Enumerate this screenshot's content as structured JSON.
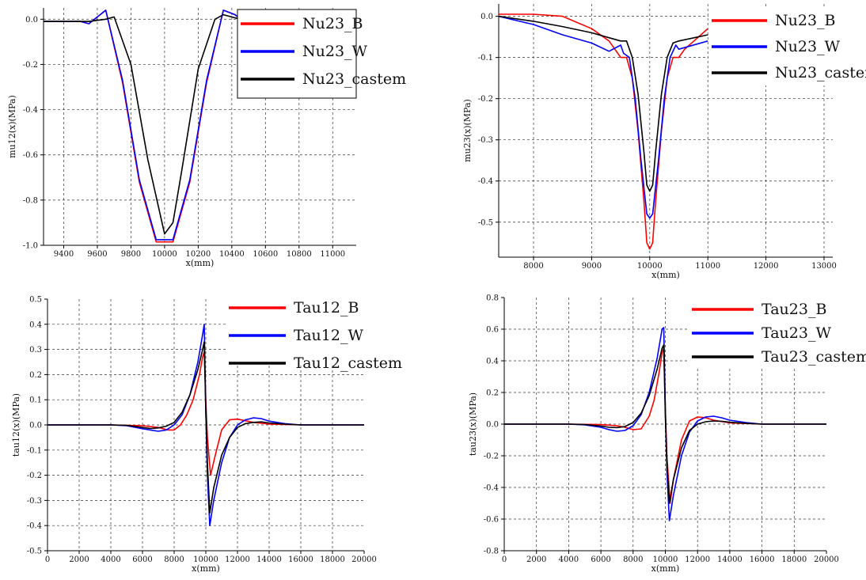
{
  "chart_data": [
    {
      "type": "line",
      "xlabel": "x(mm)",
      "ylabel": "mu12(x)(MPa)",
      "xlim": [
        9280,
        11140
      ],
      "ylim": [
        -1.0,
        0.05
      ],
      "xticks": [
        9400,
        9600,
        9800,
        10000,
        10200,
        10400,
        10600,
        10800,
        11000
      ],
      "yticks": [
        0.0,
        -0.2,
        -0.4,
        -0.6,
        -0.8,
        -1.0
      ],
      "ytick_labels": [
        "0.0",
        "-0.2",
        "-0.4",
        "-0.6",
        "-0.8",
        "-1.0"
      ],
      "grid": true,
      "legend_position": "top-right",
      "series": [
        {
          "name": "Nu23_B",
          "color": "#ff0000",
          "x": [
            9280,
            9500,
            9550,
            9650,
            9750,
            9850,
            9950,
            10050,
            10150,
            10250,
            10350,
            10420,
            10450
          ],
          "y": [
            -0.01,
            -0.01,
            -0.02,
            0.04,
            -0.28,
            -0.72,
            -0.985,
            -0.985,
            -0.72,
            -0.28,
            0.04,
            0.02,
            0.0
          ]
        },
        {
          "name": "Nu23_W",
          "color": "#0000ff",
          "x": [
            9280,
            9500,
            9550,
            9650,
            9750,
            9850,
            9950,
            10050,
            10150,
            10250,
            10350,
            10420,
            10450
          ],
          "y": [
            -0.01,
            -0.01,
            -0.02,
            0.04,
            -0.27,
            -0.71,
            -0.975,
            -0.975,
            -0.71,
            -0.27,
            0.04,
            0.02,
            0.0
          ]
        },
        {
          "name": "Nu23_castem",
          "color": "#000000",
          "x": [
            9280,
            9550,
            9650,
            9700,
            9800,
            9900,
            10000,
            10050,
            10100,
            10200,
            10300,
            10350,
            10400,
            10450
          ],
          "y": [
            -0.01,
            -0.01,
            0.0,
            0.01,
            -0.2,
            -0.62,
            -0.95,
            -0.9,
            -0.68,
            -0.22,
            0.0,
            0.02,
            0.01,
            0.0
          ]
        }
      ]
    },
    {
      "type": "line",
      "xlabel": "x(mm)",
      "ylabel": "mu23(x)(MPa)",
      "xlim": [
        7400,
        13150
      ],
      "ylim": [
        -0.585,
        0.03
      ],
      "xticks": [
        8000,
        9000,
        10000,
        11000,
        12000,
        13000
      ],
      "yticks": [
        0.0,
        -0.1,
        -0.2,
        -0.3,
        -0.4,
        -0.5
      ],
      "ytick_labels": [
        "0.0",
        "-0.1",
        "-0.2",
        "-0.3",
        "-0.4",
        "-0.5"
      ],
      "grid": true,
      "legend_position": "top-right",
      "series": [
        {
          "name": "Nu23_B",
          "color": "#ff0000",
          "x": [
            7400,
            8000,
            8500,
            9000,
            9300,
            9500,
            9600,
            9700,
            9800,
            9900,
            9950,
            10000,
            10050,
            10100,
            10200,
            10300,
            10400,
            10500,
            10600,
            11000
          ],
          "y": [
            0.005,
            0.005,
            0.0,
            -0.03,
            -0.06,
            -0.1,
            -0.1,
            -0.15,
            -0.28,
            -0.45,
            -0.55,
            -0.565,
            -0.55,
            -0.45,
            -0.28,
            -0.15,
            -0.1,
            -0.1,
            -0.08,
            -0.03
          ]
        },
        {
          "name": "Nu23_W",
          "color": "#0000ff",
          "x": [
            7400,
            8000,
            8500,
            9000,
            9300,
            9500,
            9550,
            9650,
            9750,
            9850,
            9950,
            10000,
            10050,
            10150,
            10250,
            10350,
            10450,
            10500,
            11000
          ],
          "y": [
            0.0,
            -0.02,
            -0.045,
            -0.065,
            -0.085,
            -0.07,
            -0.09,
            -0.1,
            -0.2,
            -0.35,
            -0.48,
            -0.49,
            -0.48,
            -0.35,
            -0.2,
            -0.1,
            -0.07,
            -0.08,
            -0.06
          ]
        },
        {
          "name": "Nu23_castem",
          "color": "#000000",
          "x": [
            7400,
            8000,
            8500,
            9000,
            9300,
            9500,
            9600,
            9700,
            9800,
            9900,
            9950,
            10000,
            10050,
            10100,
            10200,
            10300,
            10400,
            10500,
            11000
          ],
          "y": [
            0.0,
            -0.012,
            -0.025,
            -0.04,
            -0.052,
            -0.06,
            -0.06,
            -0.1,
            -0.19,
            -0.33,
            -0.41,
            -0.425,
            -0.41,
            -0.33,
            -0.19,
            -0.1,
            -0.065,
            -0.06,
            -0.045
          ]
        }
      ]
    },
    {
      "type": "line",
      "xlabel": "x(mm)",
      "ylabel": "tau12(x)(MPa)",
      "xlim": [
        0,
        20000
      ],
      "ylim": [
        -0.5,
        0.5
      ],
      "xticks": [
        0,
        2000,
        4000,
        6000,
        8000,
        10000,
        12000,
        14000,
        16000,
        18000,
        20000
      ],
      "yticks": [
        0.5,
        0.4,
        0.3,
        0.2,
        0.1,
        0.0,
        -0.1,
        -0.2,
        -0.3,
        -0.4,
        -0.5
      ],
      "ytick_labels": [
        "0.5",
        "0.4",
        "0.3",
        "0.2",
        "0.1",
        "0.0",
        "-0.1",
        "-0.2",
        "-0.3",
        "-0.4",
        "-0.5"
      ],
      "grid": true,
      "legend_position": "top-right",
      "series": [
        {
          "name": "Tau12_B",
          "color": "#ff0000",
          "x": [
            0,
            4000,
            6000,
            7000,
            7600,
            8000,
            8400,
            8800,
            9200,
            9600,
            9800,
            9900,
            10000,
            10100,
            10300,
            10600,
            11000,
            11500,
            12000,
            13000,
            14000,
            16000,
            20000
          ],
          "y": [
            0,
            0,
            -0.003,
            -0.01,
            -0.02,
            -0.02,
            0.0,
            0.04,
            0.1,
            0.2,
            0.27,
            0.29,
            0.1,
            -0.05,
            -0.2,
            -0.12,
            -0.02,
            0.02,
            0.023,
            0.01,
            0.003,
            0.0,
            0
          ]
        },
        {
          "name": "Tau12_W",
          "color": "#0000ff",
          "x": [
            0,
            4000,
            5000,
            6000,
            6500,
            7000,
            7500,
            8000,
            8500,
            9000,
            9500,
            9800,
            9900,
            10000,
            10100,
            10250,
            10500,
            11000,
            11500,
            12000,
            12500,
            13000,
            13500,
            14000,
            15000,
            16000,
            20000
          ],
          "y": [
            0,
            0,
            -0.003,
            -0.015,
            -0.02,
            -0.025,
            -0.02,
            0.0,
            0.04,
            0.12,
            0.25,
            0.36,
            0.4,
            0.05,
            -0.2,
            -0.4,
            -0.3,
            -0.15,
            -0.05,
            0.0,
            0.02,
            0.028,
            0.025,
            0.015,
            0.005,
            0.0,
            0
          ]
        },
        {
          "name": "Tau12_castem",
          "color": "#000000",
          "x": [
            0,
            4000,
            5000,
            6000,
            6500,
            7000,
            7500,
            8000,
            8500,
            9000,
            9500,
            9800,
            9900,
            10000,
            10100,
            10250,
            10500,
            11000,
            11500,
            12000,
            12500,
            13000,
            13500,
            14000,
            15000,
            16000,
            20000
          ],
          "y": [
            0,
            0,
            -0.002,
            -0.01,
            -0.014,
            -0.012,
            -0.005,
            0.01,
            0.05,
            0.12,
            0.22,
            0.3,
            0.33,
            0.05,
            -0.15,
            -0.35,
            -0.25,
            -0.12,
            -0.05,
            -0.01,
            0.005,
            0.01,
            0.012,
            0.008,
            0.003,
            0.0,
            0
          ]
        }
      ]
    },
    {
      "type": "line",
      "xlabel": "x(mm)",
      "ylabel": "tau23(x)(MPa)",
      "xlim": [
        0,
        20000
      ],
      "ylim": [
        -0.8,
        0.8
      ],
      "xticks": [
        0,
        2000,
        4000,
        6000,
        8000,
        10000,
        12000,
        14000,
        16000,
        18000,
        20000
      ],
      "yticks": [
        0.8,
        0.6,
        0.4,
        0.2,
        0.0,
        -0.2,
        -0.4,
        -0.6,
        -0.8
      ],
      "ytick_labels": [
        "0.8",
        "0.6",
        "0.4",
        "0.2",
        "0.0",
        "-0.2",
        "-0.4",
        "-0.6",
        "-0.8"
      ],
      "grid": true,
      "legend_position": "top-right",
      "series": [
        {
          "name": "Tau23_B",
          "color": "#ff0000",
          "x": [
            0,
            4000,
            6000,
            7000,
            7500,
            8000,
            8500,
            9000,
            9300,
            9600,
            9800,
            9900,
            10000,
            10100,
            10300,
            10500,
            11000,
            11500,
            12000,
            12500,
            13000,
            14000,
            16000,
            20000
          ],
          "y": [
            0,
            0,
            -0.003,
            -0.01,
            -0.02,
            -0.035,
            -0.03,
            0.05,
            0.15,
            0.32,
            0.45,
            0.48,
            0.1,
            -0.2,
            -0.5,
            -0.35,
            -0.1,
            0.02,
            0.045,
            0.04,
            0.025,
            0.008,
            0.0,
            0
          ]
        },
        {
          "name": "Tau23_W",
          "color": "#0000ff",
          "x": [
            0,
            4000,
            5000,
            6000,
            6500,
            7000,
            7500,
            8000,
            8500,
            9000,
            9500,
            9800,
            9900,
            10000,
            10100,
            10250,
            10500,
            11000,
            11500,
            12000,
            12500,
            13000,
            13500,
            14000,
            15000,
            16000,
            20000
          ],
          "y": [
            0,
            0,
            -0.005,
            -0.02,
            -0.035,
            -0.045,
            -0.04,
            -0.01,
            0.06,
            0.2,
            0.42,
            0.6,
            0.61,
            0.1,
            -0.3,
            -0.61,
            -0.45,
            -0.2,
            -0.05,
            0.02,
            0.045,
            0.05,
            0.04,
            0.025,
            0.01,
            0.0,
            0
          ]
        },
        {
          "name": "Tau23_castem",
          "color": "#000000",
          "x": [
            0,
            4000,
            5000,
            6000,
            6500,
            7000,
            7500,
            8000,
            8500,
            9000,
            9500,
            9800,
            9900,
            10000,
            10100,
            10250,
            10500,
            11000,
            11500,
            12000,
            12500,
            13000,
            13500,
            14000,
            15000,
            16000,
            20000
          ],
          "y": [
            0,
            0,
            -0.003,
            -0.012,
            -0.02,
            -0.022,
            -0.015,
            0.01,
            0.07,
            0.18,
            0.35,
            0.48,
            0.5,
            0.05,
            -0.25,
            -0.5,
            -0.35,
            -0.15,
            -0.04,
            0.0,
            0.015,
            0.02,
            0.018,
            0.012,
            0.005,
            0.0,
            0
          ]
        }
      ]
    }
  ]
}
